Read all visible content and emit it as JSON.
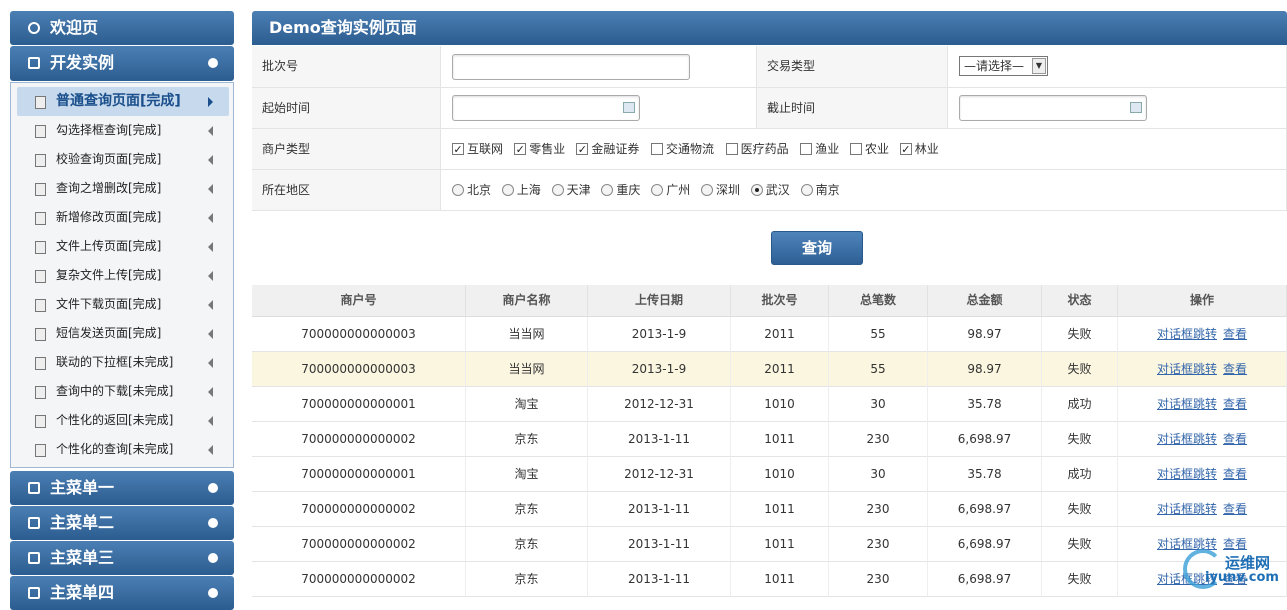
{
  "sidebar": {
    "welcome": "欢迎页",
    "section": "开发实例",
    "items": [
      "普通查询页面[完成]",
      "勾选择框查询[完成]",
      "校验查询页面[完成]",
      "查询之增删改[完成]",
      "新增修改页面[完成]",
      "文件上传页面[完成]",
      "复杂文件上传[完成]",
      "文件下载页面[完成]",
      "短信发送页面[完成]",
      "联动的下拉框[未完成]",
      "查询中的下载[未完成]",
      "个性化的返回[未完成]",
      "个性化的查询[未完成]"
    ],
    "active_item": 0,
    "menus": [
      "主菜单一",
      "主菜单二",
      "主菜单三",
      "主菜单四"
    ]
  },
  "page_title": "Demo查询实例页面",
  "form": {
    "batch_label": "批次号",
    "trade_type_label": "交易类型",
    "trade_type_placeholder": "—请选择—",
    "start_label": "起始时间",
    "end_label": "截止时间",
    "merchant_type_label": "商户类型",
    "merchant_types": [
      {
        "label": "互联网",
        "checked": true
      },
      {
        "label": "零售业",
        "checked": true
      },
      {
        "label": "金融证券",
        "checked": true
      },
      {
        "label": "交通物流",
        "checked": false
      },
      {
        "label": "医疗药品",
        "checked": false
      },
      {
        "label": "渔业",
        "checked": false
      },
      {
        "label": "农业",
        "checked": false
      },
      {
        "label": "林业",
        "checked": true
      }
    ],
    "region_label": "所在地区",
    "regions": [
      "北京",
      "上海",
      "天津",
      "重庆",
      "广州",
      "深圳",
      "武汉",
      "南京"
    ],
    "selected_region": 6,
    "submit": "查询"
  },
  "table": {
    "headers": [
      "商户号",
      "商户名称",
      "上传日期",
      "批次号",
      "总笔数",
      "总金额",
      "状态",
      "操作"
    ],
    "highlighted_row": 1,
    "rows": [
      {
        "cells": [
          "700000000000003",
          "当当网",
          "2013-1-9",
          "2011",
          "55",
          "98.97",
          "失败"
        ],
        "actions": [
          "对话框跳转",
          "查看"
        ]
      },
      {
        "cells": [
          "700000000000003",
          "当当网",
          "2013-1-9",
          "2011",
          "55",
          "98.97",
          "失败"
        ],
        "actions": [
          "对话框跳转",
          "查看"
        ]
      },
      {
        "cells": [
          "700000000000001",
          "淘宝",
          "2012-12-31",
          "1010",
          "30",
          "35.78",
          "成功"
        ],
        "actions": [
          "对话框跳转",
          "查看"
        ]
      },
      {
        "cells": [
          "700000000000002",
          "京东",
          "2013-1-11",
          "1011",
          "230",
          "6,698.97",
          "失败"
        ],
        "actions": [
          "对话框跳转",
          "查看"
        ]
      },
      {
        "cells": [
          "700000000000001",
          "淘宝",
          "2012-12-31",
          "1010",
          "30",
          "35.78",
          "成功"
        ],
        "actions": [
          "对话框跳转",
          "查看"
        ]
      },
      {
        "cells": [
          "700000000000002",
          "京东",
          "2013-1-11",
          "1011",
          "230",
          "6,698.97",
          "失败"
        ],
        "actions": [
          "对话框跳转",
          "查看"
        ]
      },
      {
        "cells": [
          "700000000000002",
          "京东",
          "2013-1-11",
          "1011",
          "230",
          "6,698.97",
          "失败"
        ],
        "actions": [
          "对话框跳转",
          "查看"
        ]
      },
      {
        "cells": [
          "700000000000002",
          "京东",
          "2013-1-11",
          "1011",
          "230",
          "6,698.97",
          "失败"
        ],
        "actions": [
          "对话框跳转",
          "查看"
        ]
      }
    ]
  },
  "watermark": [
    "运维网",
    "iyunv.com"
  ]
}
